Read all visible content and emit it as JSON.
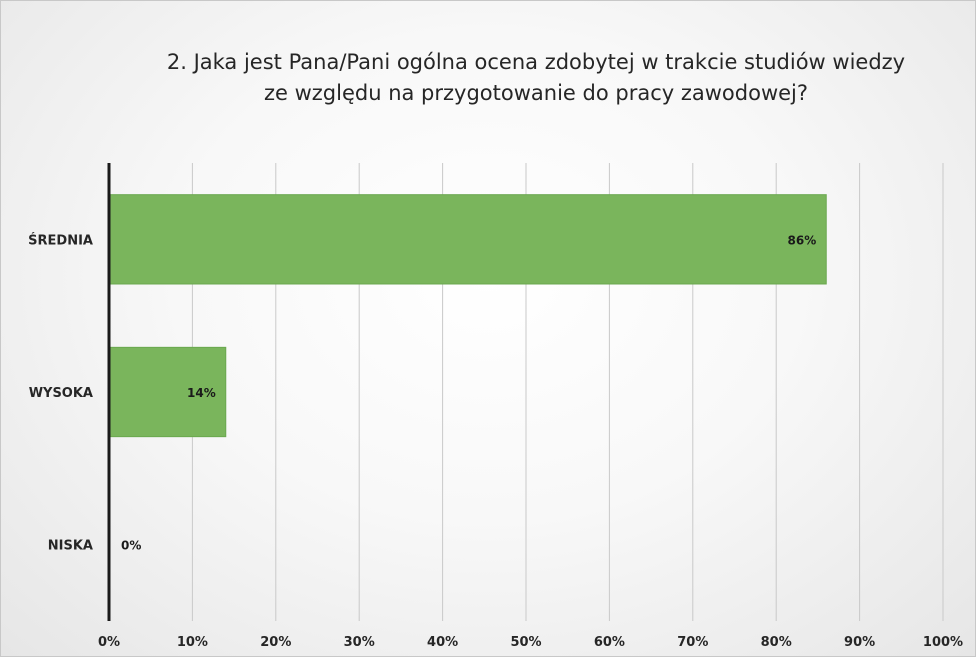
{
  "chart_data": {
    "type": "bar",
    "orientation": "horizontal",
    "title_lines": [
      "2. Jaka jest Pana/Pani ogólna ocena zdobytej w trakcie studiów wiedzy",
      "ze względu na przygotowanie do pracy zawodowej?"
    ],
    "categories": [
      "ŚREDNIA",
      "WYSOKA",
      "NISKA"
    ],
    "values": [
      86,
      14,
      0
    ],
    "data_labels": [
      "86%",
      "14%",
      "0%"
    ],
    "xlim": [
      0,
      100
    ],
    "x_ticks": [
      "0%",
      "10%",
      "20%",
      "30%",
      "40%",
      "50%",
      "60%",
      "70%",
      "80%",
      "90%",
      "100%"
    ],
    "grid": true,
    "legend": "none",
    "bar_color": "#7ab55c",
    "bar_edge_color": "#6aa84f"
  }
}
